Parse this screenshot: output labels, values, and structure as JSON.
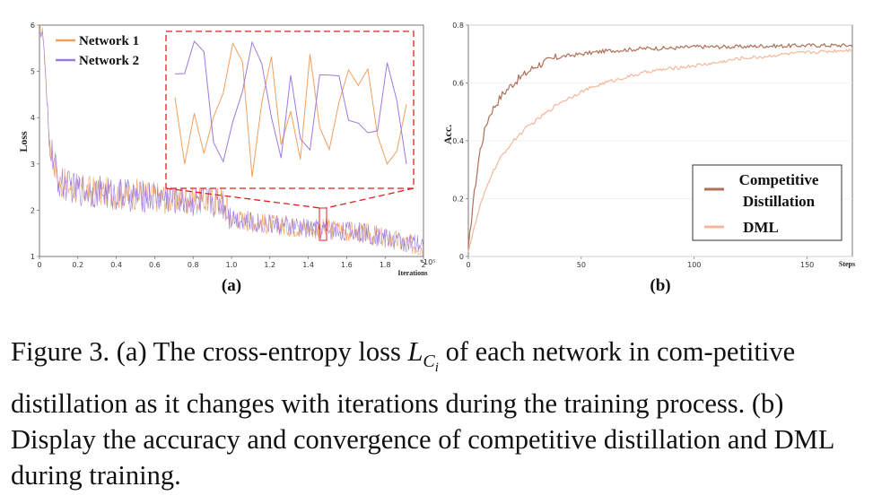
{
  "chart_data": [
    {
      "type": "line",
      "panel": "(a)",
      "xlabel": "Iterations",
      "x_multiplier": "*10⁵",
      "ylabel": "Loss",
      "xlim": [
        0,
        2
      ],
      "ylim": [
        1,
        6
      ],
      "xticks": [
        "0",
        "0.2",
        "0.4",
        "0.6",
        "0.8",
        "1.0",
        "1.2",
        "1.4",
        "1.6",
        "1.8",
        "2"
      ],
      "yticks": [
        "1",
        "2",
        "3",
        "4",
        "5",
        "6"
      ],
      "legend_position": "top-left",
      "series": [
        {
          "name": "Network 1",
          "color": "#f0a060",
          "x": [
            0,
            0.02,
            0.05,
            0.1,
            0.2,
            0.3,
            0.4,
            0.5,
            0.6,
            0.7,
            0.8,
            0.9,
            0.95,
            1.0,
            1.1,
            1.2,
            1.3,
            1.4,
            1.5,
            1.6,
            1.7,
            1.8,
            1.9,
            2.0
          ],
          "values": [
            5.9,
            5.8,
            3.6,
            2.6,
            2.45,
            2.4,
            2.35,
            2.35,
            2.3,
            2.25,
            2.25,
            2.2,
            2.2,
            1.85,
            1.75,
            1.7,
            1.65,
            1.62,
            1.6,
            1.55,
            1.5,
            1.4,
            1.3,
            1.2
          ]
        },
        {
          "name": "Network 2",
          "color": "#9b7be0",
          "x": [
            0,
            0.02,
            0.05,
            0.1,
            0.2,
            0.3,
            0.4,
            0.5,
            0.6,
            0.7,
            0.8,
            0.9,
            0.95,
            1.0,
            1.1,
            1.2,
            1.3,
            1.4,
            1.5,
            1.6,
            1.7,
            1.8,
            1.9,
            2.0
          ],
          "values": [
            5.9,
            5.7,
            3.5,
            2.6,
            2.45,
            2.4,
            2.35,
            2.3,
            2.3,
            2.25,
            2.2,
            2.2,
            2.2,
            1.85,
            1.75,
            1.7,
            1.65,
            1.6,
            1.58,
            1.55,
            1.5,
            1.4,
            1.3,
            1.2
          ]
        }
      ],
      "annotation": "zoomed inset of loss near iteration 1.48"
    },
    {
      "type": "line",
      "panel": "(b)",
      "xlabel": "Steps",
      "ylabel": "Acc.",
      "xlim": [
        0,
        170
      ],
      "ylim": [
        0,
        0.8
      ],
      "xticks": [
        "0",
        "50",
        "100",
        "150"
      ],
      "yticks": [
        "0",
        "0.2",
        "0.4",
        "0.6",
        "0.8"
      ],
      "legend_position": "bottom-right",
      "series": [
        {
          "name": "Competitive Distillation",
          "color": "#b07058",
          "x": [
            0,
            2,
            5,
            8,
            10,
            15,
            20,
            25,
            30,
            40,
            50,
            60,
            70,
            80,
            90,
            100,
            110,
            120,
            130,
            140,
            150,
            160,
            170
          ],
          "values": [
            0.02,
            0.18,
            0.36,
            0.46,
            0.5,
            0.56,
            0.6,
            0.63,
            0.66,
            0.69,
            0.7,
            0.71,
            0.715,
            0.72,
            0.72,
            0.725,
            0.725,
            0.725,
            0.728,
            0.728,
            0.73,
            0.73,
            0.73
          ]
        },
        {
          "name": "DML",
          "color": "#f2b89c",
          "x": [
            0,
            5,
            10,
            15,
            20,
            25,
            30,
            40,
            50,
            60,
            70,
            80,
            90,
            100,
            110,
            120,
            130,
            140,
            150,
            160,
            170
          ],
          "values": [
            0.02,
            0.17,
            0.28,
            0.35,
            0.4,
            0.44,
            0.47,
            0.53,
            0.57,
            0.6,
            0.62,
            0.64,
            0.65,
            0.66,
            0.67,
            0.685,
            0.69,
            0.7,
            0.705,
            0.71,
            0.715
          ]
        }
      ]
    }
  ],
  "figure": {
    "panel_a": "(a)",
    "panel_b": "(b)",
    "legend_a": [
      "Network 1",
      "Network 2"
    ],
    "legend_b_line1": "Competitive",
    "legend_b_line2": "Distillation",
    "legend_b_dml": "DML",
    "ylabel_a": "Loss",
    "xlabel_a": "Iterations",
    "xmult_a": "*10⁵",
    "ylabel_b": "Acc.",
    "xlabel_b": "Steps"
  },
  "caption": {
    "part1": "Figure 3. (a) The cross-entropy loss ",
    "math_base": "L",
    "math_sub": "C",
    "math_subsub": "i",
    "part2": " of each network in com-petitive distillation as it changes with iterations during the training process. (b) Display the accuracy and convergence of competitive distillation and DML during training."
  }
}
